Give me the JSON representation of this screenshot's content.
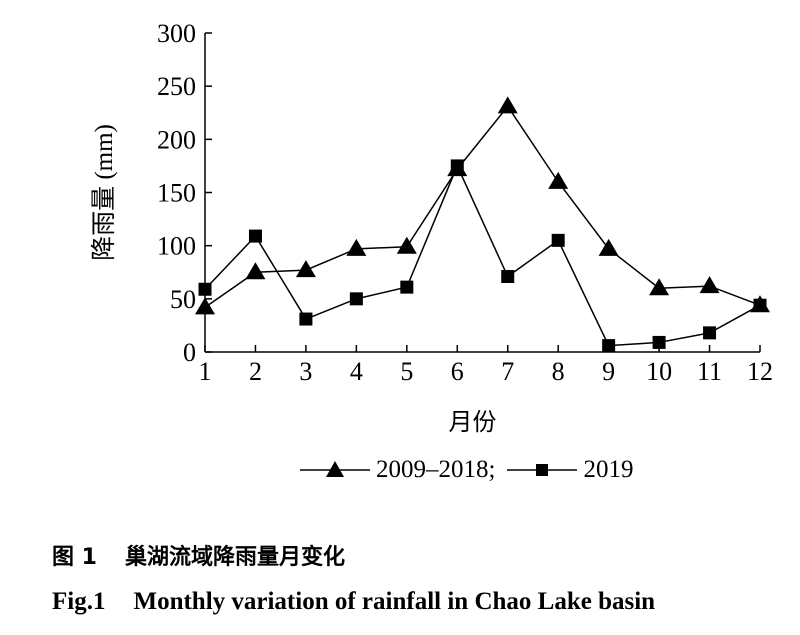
{
  "chart_data": {
    "type": "line",
    "xlabel": "月份",
    "ylabel": "降雨量 (mm)",
    "categories": [
      "1",
      "2",
      "3",
      "4",
      "5",
      "6",
      "7",
      "8",
      "9",
      "10",
      "11",
      "12"
    ],
    "yticks": [
      "0",
      "50",
      "100",
      "150",
      "200",
      "250",
      "300"
    ],
    "ylim": [
      0,
      300
    ],
    "grid": false,
    "legend_placement": "bottom",
    "series": [
      {
        "name": "2009–2018;",
        "marker": "triangle",
        "values": [
          42,
          75,
          77,
          97,
          99,
          172,
          231,
          160,
          97,
          60,
          62,
          44
        ]
      },
      {
        "name": "2019",
        "marker": "square",
        "values": [
          59,
          109,
          31,
          50,
          61,
          175,
          71,
          105,
          6,
          9,
          18,
          44
        ]
      }
    ]
  },
  "caption": {
    "cn_number": "图 1",
    "cn_title": "巢湖流域降雨量月变化",
    "en_number": "Fig.1",
    "en_title": "Monthly variation of rainfall in Chao Lake basin"
  },
  "colors": {
    "line": "#000000",
    "background": "#ffffff"
  }
}
